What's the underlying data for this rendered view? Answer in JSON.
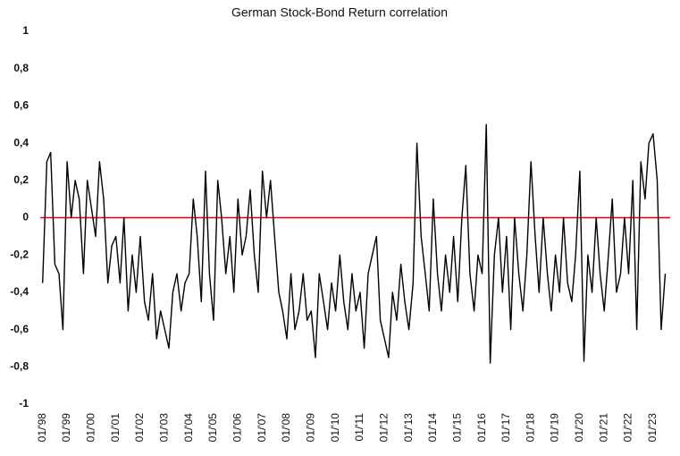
{
  "chart_data": {
    "type": "line",
    "title": "German Stock-Bond Return correlation",
    "color": "#000000",
    "hline": 0,
    "hline_color": "#e00000",
    "grid": false,
    "xlim": [
      1997.9,
      2023.7
    ],
    "ylim": [
      -1,
      1
    ],
    "yticks": [
      {
        "value": -1,
        "label": "-1"
      },
      {
        "value": -0.8,
        "label": "-0,8"
      },
      {
        "value": -0.6,
        "label": "-0,6"
      },
      {
        "value": -0.4,
        "label": "-0,4"
      },
      {
        "value": -0.2,
        "label": "-0,2"
      },
      0,
      {
        "value": 0.2,
        "label": "0,2"
      },
      {
        "value": 0.4,
        "label": "0,4"
      },
      {
        "value": 0.6,
        "label": "0,6"
      },
      {
        "value": 0.8,
        "label": "0,8"
      },
      1
    ],
    "xticks": [
      {
        "value": 1998,
        "label": "01/'98"
      },
      {
        "value": 1999,
        "label": "01/'99"
      },
      {
        "value": 2000,
        "label": "01/'00"
      },
      {
        "value": 2001,
        "label": "01/'01"
      },
      {
        "value": 2002,
        "label": "01/'02"
      },
      {
        "value": 2003,
        "label": "01/'03"
      },
      {
        "value": 2004,
        "label": "01/'04"
      },
      {
        "value": 2005,
        "label": "01/'05"
      },
      {
        "value": 2006,
        "label": "01/'06"
      },
      {
        "value": 2007,
        "label": "01/'07"
      },
      {
        "value": 2008,
        "label": "01/'08"
      },
      {
        "value": 2009,
        "label": "01/'09"
      },
      {
        "value": 2010,
        "label": "01/'10"
      },
      {
        "value": 2011,
        "label": "01/'11"
      },
      {
        "value": 2012,
        "label": "01/'12"
      },
      {
        "value": 2013,
        "label": "01/'13"
      },
      {
        "value": 2014,
        "label": "01/'14"
      },
      {
        "value": 2015,
        "label": "01/'15"
      },
      {
        "value": 2016,
        "label": "01/'16"
      },
      {
        "value": 2017,
        "label": "01/'17"
      },
      {
        "value": 2018,
        "label": "01/'18"
      },
      {
        "value": 2019,
        "label": "01/'19"
      },
      {
        "value": 2020,
        "label": "01/'20"
      },
      {
        "value": 2021,
        "label": "01/'21"
      },
      {
        "value": 2022,
        "label": "01/'22"
      },
      {
        "value": 2023,
        "label": "01/'23"
      }
    ],
    "x": [
      1998,
      1998.17,
      1998.33,
      1998.5,
      1998.67,
      1998.83,
      1999,
      1999.17,
      1999.33,
      1999.5,
      1999.67,
      1999.83,
      2000,
      2000.17,
      2000.33,
      2000.5,
      2000.67,
      2000.83,
      2001,
      2001.17,
      2001.33,
      2001.5,
      2001.67,
      2001.83,
      2002,
      2002.17,
      2002.33,
      2002.5,
      2002.67,
      2002.83,
      2003,
      2003.17,
      2003.33,
      2003.5,
      2003.67,
      2003.83,
      2004,
      2004.17,
      2004.33,
      2004.5,
      2004.67,
      2004.83,
      2005,
      2005.17,
      2005.33,
      2005.5,
      2005.67,
      2005.83,
      2006,
      2006.17,
      2006.33,
      2006.5,
      2006.67,
      2006.83,
      2007,
      2007.17,
      2007.33,
      2007.5,
      2007.67,
      2007.83,
      2008,
      2008.17,
      2008.33,
      2008.5,
      2008.67,
      2008.83,
      2009,
      2009.17,
      2009.33,
      2009.5,
      2009.67,
      2009.83,
      2010,
      2010.17,
      2010.33,
      2010.5,
      2010.67,
      2010.83,
      2011,
      2011.17,
      2011.33,
      2011.5,
      2011.67,
      2011.83,
      2012,
      2012.17,
      2012.33,
      2012.5,
      2012.67,
      2012.83,
      2013,
      2013.17,
      2013.33,
      2013.5,
      2013.67,
      2013.83,
      2014,
      2014.17,
      2014.33,
      2014.5,
      2014.67,
      2014.83,
      2015,
      2015.17,
      2015.33,
      2015.5,
      2015.67,
      2015.83,
      2016,
      2016.17,
      2016.33,
      2016.5,
      2016.67,
      2016.83,
      2017,
      2017.17,
      2017.33,
      2017.5,
      2017.67,
      2017.83,
      2018,
      2018.17,
      2018.33,
      2018.5,
      2018.67,
      2018.83,
      2019,
      2019.17,
      2019.33,
      2019.5,
      2019.67,
      2019.83,
      2020,
      2020.17,
      2020.33,
      2020.5,
      2020.67,
      2020.83,
      2021,
      2021.17,
      2021.33,
      2021.5,
      2021.67,
      2021.83,
      2022,
      2022.17,
      2022.33,
      2022.5,
      2022.67,
      2022.83,
      2023,
      2023.17,
      2023.33,
      2023.5
    ],
    "values": [
      -0.35,
      0.3,
      0.35,
      -0.25,
      -0.3,
      -0.6,
      0.3,
      0,
      0.2,
      0.1,
      -0.3,
      0.2,
      0.05,
      -0.1,
      0.3,
      0.1,
      -0.35,
      -0.15,
      -0.1,
      -0.35,
      0,
      -0.5,
      -0.2,
      -0.4,
      -0.1,
      -0.45,
      -0.55,
      -0.3,
      -0.65,
      -0.5,
      -0.6,
      -0.7,
      -0.4,
      -0.3,
      -0.5,
      -0.35,
      -0.3,
      0.1,
      -0.1,
      -0.45,
      0.25,
      -0.3,
      -0.55,
      0.2,
      0,
      -0.3,
      -0.1,
      -0.4,
      0.1,
      -0.2,
      -0.1,
      0.15,
      -0.2,
      -0.4,
      0.25,
      0,
      0.2,
      -0.1,
      -0.4,
      -0.5,
      -0.65,
      -0.3,
      -0.6,
      -0.5,
      -0.3,
      -0.55,
      -0.5,
      -0.75,
      -0.3,
      -0.45,
      -0.6,
      -0.35,
      -0.5,
      -0.2,
      -0.45,
      -0.6,
      -0.3,
      -0.5,
      -0.4,
      -0.7,
      -0.3,
      -0.2,
      -0.1,
      -0.55,
      -0.65,
      -0.75,
      -0.4,
      -0.55,
      -0.25,
      -0.45,
      -0.6,
      -0.35,
      0.4,
      -0.1,
      -0.3,
      -0.5,
      0.1,
      -0.3,
      -0.5,
      -0.2,
      -0.4,
      -0.1,
      -0.45,
      0,
      0.28,
      -0.3,
      -0.5,
      -0.2,
      -0.3,
      0.5,
      -0.78,
      -0.2,
      0,
      -0.4,
      -0.1,
      -0.6,
      0,
      -0.3,
      -0.5,
      -0.2,
      0.3,
      -0.1,
      -0.4,
      0,
      -0.3,
      -0.5,
      -0.2,
      -0.4,
      0,
      -0.35,
      -0.45,
      -0.2,
      0.25,
      -0.77,
      -0.2,
      -0.4,
      0,
      -0.3,
      -0.5,
      -0.2,
      0.1,
      -0.4,
      -0.3,
      0,
      -0.3,
      0.2,
      -0.6,
      0.3,
      0.1,
      0.4,
      0.45,
      0.2,
      -0.6,
      -0.3
    ]
  }
}
